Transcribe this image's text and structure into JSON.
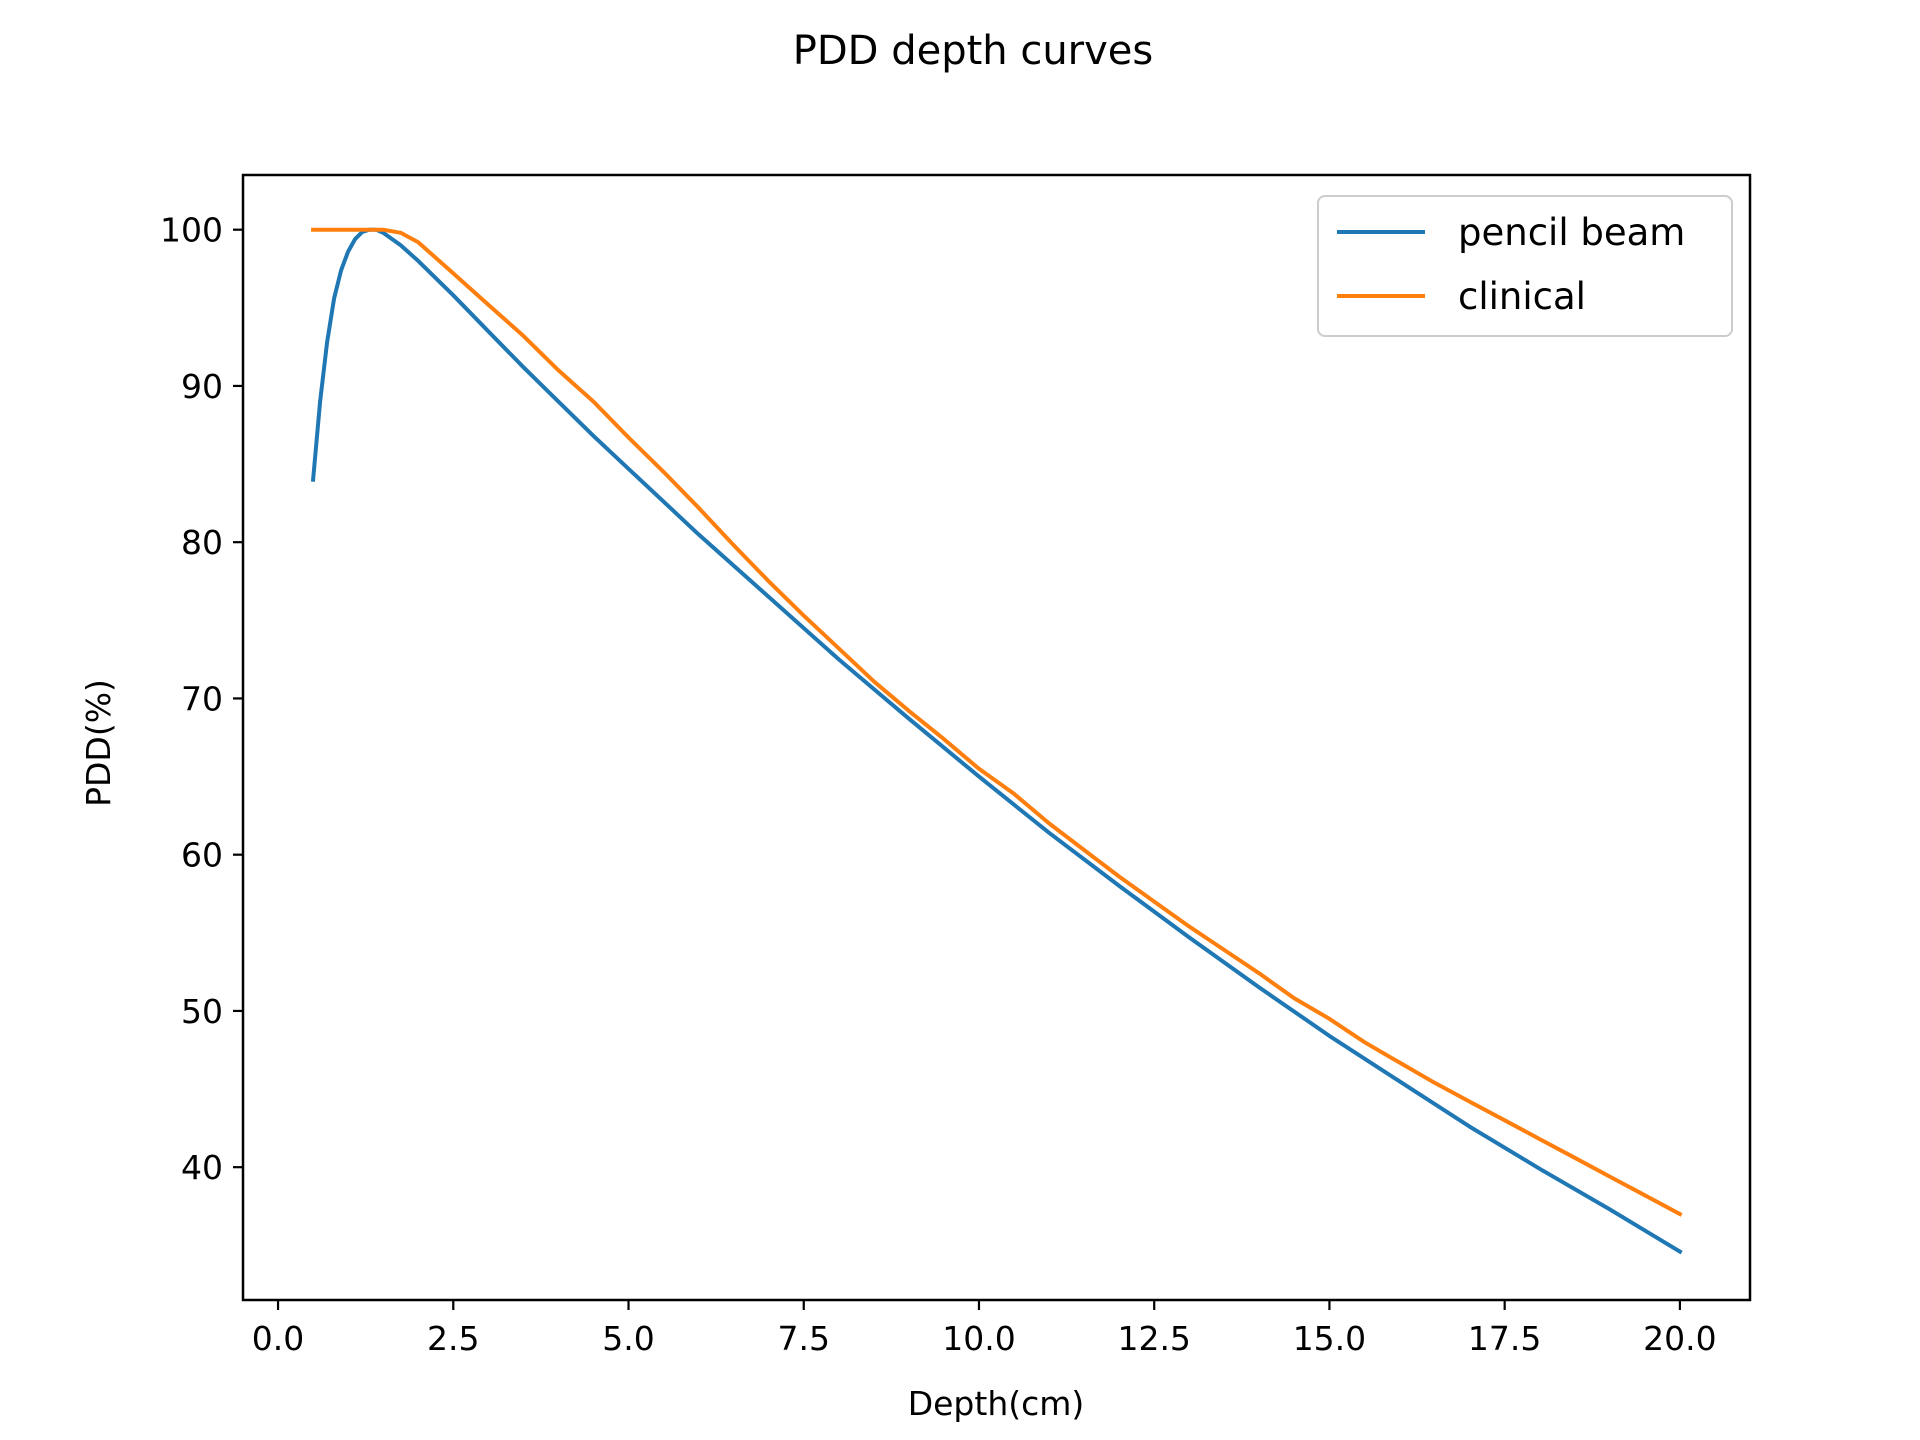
{
  "chart_data": {
    "type": "line",
    "title": "PDD depth curves",
    "xlabel": "Depth(cm)",
    "ylabel": "PDD(%)",
    "xlim": [
      -0.5,
      21.0
    ],
    "ylim": [
      31.5,
      103.5
    ],
    "xticks": [
      "0.0",
      "2.5",
      "5.0",
      "7.5",
      "10.0",
      "12.5",
      "15.0",
      "17.5",
      "20.0"
    ],
    "yticks": [
      "40",
      "50",
      "60",
      "70",
      "80",
      "90",
      "100"
    ],
    "grid": false,
    "legend_position": "upper right",
    "series": [
      {
        "name": "pencil beam",
        "color": "#1f77b4",
        "points": [
          [
            0.5,
            84.0
          ],
          [
            0.6,
            89.0
          ],
          [
            0.7,
            92.8
          ],
          [
            0.8,
            95.6
          ],
          [
            0.9,
            97.4
          ],
          [
            1.0,
            98.6
          ],
          [
            1.1,
            99.4
          ],
          [
            1.2,
            99.85
          ],
          [
            1.3,
            100.0
          ],
          [
            1.4,
            100.0
          ],
          [
            1.5,
            99.8
          ],
          [
            1.75,
            99.0
          ],
          [
            2.0,
            98.0
          ],
          [
            2.5,
            95.8
          ],
          [
            3.0,
            93.5
          ],
          [
            3.5,
            91.2
          ],
          [
            4.0,
            89.0
          ],
          [
            4.5,
            86.8
          ],
          [
            5.0,
            84.7
          ],
          [
            6.0,
            80.5
          ],
          [
            7.0,
            76.5
          ],
          [
            8.0,
            72.5
          ],
          [
            9.0,
            68.7
          ],
          [
            10.0,
            65.0
          ],
          [
            11.0,
            61.4
          ],
          [
            12.0,
            58.0
          ],
          [
            13.0,
            54.7
          ],
          [
            14.0,
            51.5
          ],
          [
            15.0,
            48.4
          ],
          [
            16.0,
            45.5
          ],
          [
            17.0,
            42.6
          ],
          [
            18.0,
            39.9
          ],
          [
            19.0,
            37.3
          ],
          [
            20.0,
            34.6
          ]
        ]
      },
      {
        "name": "clinical",
        "color": "#ff7f0e",
        "points": [
          [
            0.5,
            100.0
          ],
          [
            1.0,
            100.0
          ],
          [
            1.5,
            100.0
          ],
          [
            1.75,
            99.8
          ],
          [
            2.0,
            99.2
          ],
          [
            2.5,
            97.2
          ],
          [
            3.0,
            95.2
          ],
          [
            3.5,
            93.2
          ],
          [
            4.0,
            91.0
          ],
          [
            4.5,
            89.0
          ],
          [
            5.0,
            86.7
          ],
          [
            5.5,
            84.5
          ],
          [
            6.0,
            82.2
          ],
          [
            6.5,
            79.8
          ],
          [
            7.0,
            77.5
          ],
          [
            7.5,
            75.3
          ],
          [
            8.0,
            73.2
          ],
          [
            8.5,
            71.1
          ],
          [
            9.0,
            69.2
          ],
          [
            9.5,
            67.4
          ],
          [
            10.0,
            65.5
          ],
          [
            10.5,
            63.9
          ],
          [
            11.0,
            62.0
          ],
          [
            11.5,
            60.3
          ],
          [
            12.0,
            58.6
          ],
          [
            12.5,
            57.0
          ],
          [
            13.0,
            55.4
          ],
          [
            13.5,
            53.9
          ],
          [
            14.0,
            52.4
          ],
          [
            14.5,
            50.8
          ],
          [
            15.0,
            49.5
          ],
          [
            15.5,
            48.0
          ],
          [
            16.0,
            46.7
          ],
          [
            16.5,
            45.4
          ],
          [
            17.0,
            44.2
          ],
          [
            17.5,
            43.0
          ],
          [
            18.0,
            41.8
          ],
          [
            18.5,
            40.6
          ],
          [
            19.0,
            39.4
          ],
          [
            19.5,
            38.2
          ],
          [
            20.0,
            37.0
          ]
        ]
      }
    ]
  }
}
